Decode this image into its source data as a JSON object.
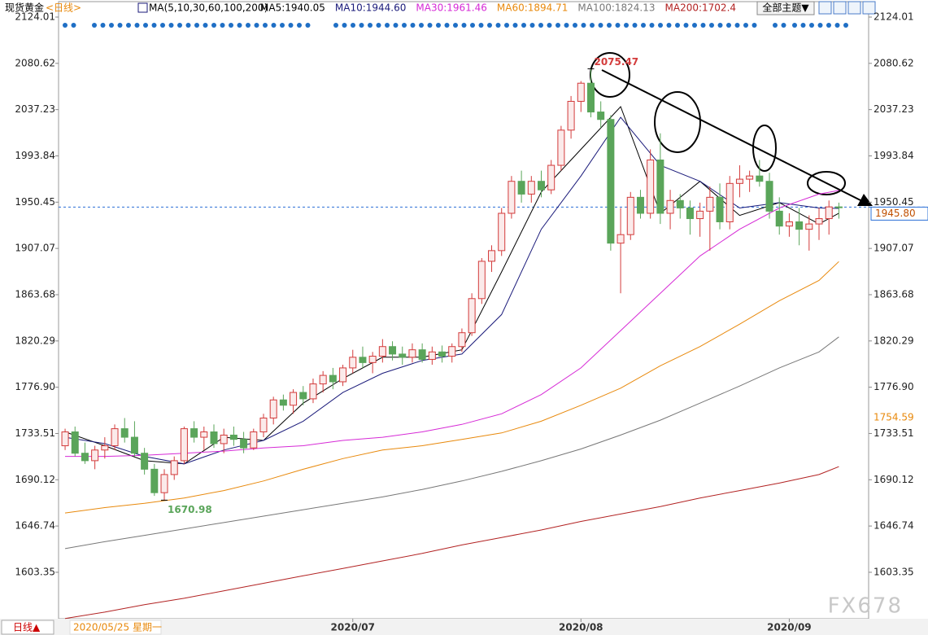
{
  "header": {
    "instrument": "现货黄金",
    "period": "<日线>",
    "ma_params": "MA(5,10,30,60,100,200)",
    "theme_button": "全部主题▼"
  },
  "chart_data": {
    "type": "candlestick",
    "colors": {
      "up": "#d33b3b",
      "up_fill": "#fbeaea",
      "down": "#5aa55a"
    },
    "xlim": [
      -0.66,
      81
    ],
    "xticks": [
      {
        "value": 29,
        "label": "2020/07"
      },
      {
        "value": 52,
        "label": "2020/08"
      },
      {
        "value": 73,
        "label": "2020/09"
      }
    ],
    "ylim": [
      1559.8,
      2138.5
    ],
    "yticks": [
      2124.01,
      2080.62,
      2037.23,
      1993.84,
      1950.45,
      1907.07,
      1863.68,
      1820.29,
      1776.9,
      1733.51,
      1690.12,
      1646.74,
      1603.35
    ],
    "ytick_labels": [
      "2124.01",
      "2080.62",
      "2037.23",
      "1993.84",
      "1950.45",
      "1907.07",
      "1863.68",
      "1820.29",
      "1776.90",
      "1733.51",
      "1690.12",
      "1646.74",
      "1603.35"
    ],
    "candles": [
      [
        1722,
        1738,
        1718,
        1735
      ],
      [
        1735,
        1740,
        1712,
        1715
      ],
      [
        1715,
        1725,
        1705,
        1708
      ],
      [
        1708,
        1722,
        1700,
        1718
      ],
      [
        1718,
        1730,
        1710,
        1722
      ],
      [
        1722,
        1742,
        1718,
        1738
      ],
      [
        1738,
        1748,
        1725,
        1730
      ],
      [
        1730,
        1745,
        1712,
        1715
      ],
      [
        1715,
        1720,
        1695,
        1700
      ],
      [
        1700,
        1705,
        1675,
        1678
      ],
      [
        1678,
        1700,
        1670.98,
        1695
      ],
      [
        1695,
        1712,
        1690,
        1708
      ],
      [
        1708,
        1740,
        1705,
        1738
      ],
      [
        1738,
        1745,
        1725,
        1730
      ],
      [
        1730,
        1740,
        1718,
        1735
      ],
      [
        1735,
        1742,
        1720,
        1724
      ],
      [
        1724,
        1738,
        1715,
        1732
      ],
      [
        1732,
        1740,
        1722,
        1728
      ],
      [
        1728,
        1735,
        1715,
        1720
      ],
      [
        1720,
        1738,
        1718,
        1735
      ],
      [
        1735,
        1752,
        1730,
        1748
      ],
      [
        1748,
        1768,
        1742,
        1765
      ],
      [
        1765,
        1770,
        1755,
        1760
      ],
      [
        1760,
        1775,
        1752,
        1772
      ],
      [
        1772,
        1778,
        1760,
        1766
      ],
      [
        1766,
        1785,
        1762,
        1780
      ],
      [
        1780,
        1792,
        1772,
        1788
      ],
      [
        1788,
        1795,
        1775,
        1782
      ],
      [
        1782,
        1798,
        1778,
        1795
      ],
      [
        1795,
        1812,
        1790,
        1805
      ],
      [
        1805,
        1815,
        1795,
        1800
      ],
      [
        1800,
        1810,
        1790,
        1806
      ],
      [
        1806,
        1822,
        1800,
        1815
      ],
      [
        1815,
        1820,
        1802,
        1808
      ],
      [
        1808,
        1815,
        1798,
        1805
      ],
      [
        1805,
        1818,
        1800,
        1812
      ],
      [
        1812,
        1818,
        1800,
        1803
      ],
      [
        1803,
        1815,
        1798,
        1810
      ],
      [
        1810,
        1816,
        1800,
        1806
      ],
      [
        1806,
        1818,
        1800,
        1815
      ],
      [
        1815,
        1832,
        1810,
        1828
      ],
      [
        1828,
        1865,
        1825,
        1860
      ],
      [
        1860,
        1898,
        1855,
        1895
      ],
      [
        1895,
        1910,
        1885,
        1905
      ],
      [
        1905,
        1945,
        1900,
        1940
      ],
      [
        1940,
        1975,
        1935,
        1970
      ],
      [
        1970,
        1980,
        1950,
        1958
      ],
      [
        1958,
        1975,
        1950,
        1970
      ],
      [
        1970,
        1980,
        1955,
        1962
      ],
      [
        1962,
        1990,
        1958,
        1985
      ],
      [
        1985,
        2022,
        1980,
        2018
      ],
      [
        2018,
        2050,
        2010,
        2045
      ],
      [
        2045,
        2064,
        2035,
        2062
      ],
      [
        2062,
        2075.47,
        2030,
        2035
      ],
      [
        2035,
        2045,
        2020,
        2028
      ],
      [
        2028,
        2032,
        1905,
        1912
      ],
      [
        1912,
        1945,
        1865,
        1920
      ],
      [
        1920,
        1960,
        1915,
        1955
      ],
      [
        1955,
        1962,
        1935,
        1940
      ],
      [
        1940,
        2000,
        1935,
        1990
      ],
      [
        1990,
        2015,
        1930,
        1940
      ],
      [
        1940,
        1962,
        1925,
        1952
      ],
      [
        1952,
        1958,
        1935,
        1945
      ],
      [
        1945,
        1952,
        1920,
        1935
      ],
      [
        1935,
        1950,
        1918,
        1942
      ],
      [
        1942,
        1965,
        1905,
        1955
      ],
      [
        1955,
        1968,
        1925,
        1932
      ],
      [
        1932,
        1975,
        1925,
        1968
      ],
      [
        1968,
        1985,
        1955,
        1972
      ],
      [
        1972,
        1980,
        1960,
        1975
      ],
      [
        1975,
        1990,
        1965,
        1970
      ],
      [
        1970,
        1978,
        1935,
        1942
      ],
      [
        1942,
        1955,
        1920,
        1928
      ],
      [
        1928,
        1940,
        1918,
        1932
      ],
      [
        1932,
        1945,
        1910,
        1925
      ],
      [
        1925,
        1938,
        1905,
        1930
      ],
      [
        1930,
        1945,
        1915,
        1935
      ],
      [
        1935,
        1952,
        1920,
        1946
      ],
      [
        1946,
        1950,
        1935,
        1945.8
      ]
    ],
    "series": [
      {
        "name": "MA5:1940.05",
        "color": "#000000",
        "x": [
          0,
          4,
          8,
          12,
          16,
          20,
          24,
          28,
          32,
          36,
          40,
          44,
          48,
          52,
          56,
          60,
          64,
          68,
          72,
          76,
          78
        ],
        "values": [
          1735,
          1722,
          1708,
          1705,
          1730,
          1727,
          1762,
          1785,
          1805,
          1805,
          1812,
          1885,
          1960,
          2000,
          2040,
          1940,
          1970,
          1938,
          1950,
          1930,
          1940.05
        ]
      },
      {
        "name": "MA10:1944.60",
        "color": "#1a1a7a",
        "x": [
          0,
          4,
          8,
          12,
          16,
          20,
          24,
          28,
          32,
          36,
          40,
          44,
          48,
          52,
          56,
          60,
          64,
          68,
          72,
          76,
          78
        ],
        "values": [
          1730,
          1724,
          1712,
          1705,
          1718,
          1727,
          1745,
          1772,
          1790,
          1802,
          1808,
          1845,
          1925,
          1975,
          2030,
          1985,
          1970,
          1945,
          1950,
          1945,
          1944.6
        ]
      },
      {
        "name": "MA30:1961.46",
        "color": "#d62ad6",
        "x": [
          0,
          4,
          8,
          12,
          16,
          20,
          24,
          28,
          32,
          36,
          40,
          44,
          48,
          52,
          56,
          60,
          64,
          68,
          72,
          76,
          78
        ],
        "values": [
          1712,
          1712,
          1713,
          1715,
          1717,
          1720,
          1722,
          1727,
          1730,
          1735,
          1742,
          1752,
          1770,
          1795,
          1830,
          1865,
          1900,
          1925,
          1945,
          1958,
          1961.46
        ]
      },
      {
        "name": "MA60:1894.71",
        "color": "#e8890c",
        "x": [
          0,
          4,
          8,
          12,
          16,
          20,
          24,
          28,
          32,
          36,
          40,
          44,
          48,
          52,
          56,
          60,
          64,
          68,
          72,
          76,
          78
        ],
        "values": [
          1659,
          1664,
          1668,
          1673,
          1680,
          1689,
          1700,
          1710,
          1718,
          1722,
          1728,
          1734,
          1745,
          1760,
          1776,
          1797,
          1815,
          1836,
          1858,
          1877,
          1894.71
        ]
      },
      {
        "name": "MA100:1824.13",
        "color": "#777777",
        "x": [
          0,
          4,
          8,
          12,
          16,
          20,
          24,
          28,
          32,
          36,
          40,
          44,
          48,
          52,
          56,
          60,
          64,
          68,
          72,
          76,
          78
        ],
        "values": [
          1625.5,
          1632,
          1638,
          1644,
          1650,
          1656,
          1662,
          1668,
          1674,
          1681,
          1689,
          1698,
          1708,
          1719,
          1732,
          1746,
          1762,
          1778,
          1795,
          1810,
          1824.13
        ]
      },
      {
        "name": "MA200:1702.4",
        "color": "#b22222",
        "x": [
          0,
          4,
          8,
          12,
          16,
          20,
          24,
          28,
          32,
          36,
          40,
          44,
          48,
          52,
          56,
          60,
          64,
          68,
          72,
          76,
          78
        ],
        "values": [
          1560,
          1566,
          1573,
          1579,
          1586,
          1593,
          1600,
          1607,
          1614,
          1621,
          1629,
          1636,
          1643,
          1651,
          1658,
          1665,
          1673,
          1680,
          1687,
          1695,
          1702.4
        ]
      }
    ],
    "annotations": [
      {
        "x": 10,
        "value": 1670.98,
        "label": "1670.98",
        "color": "#5aa55a"
      },
      {
        "x": 53,
        "value": 2075.47,
        "label": "2075.47",
        "color": "#d33b3b"
      }
    ],
    "last_price": {
      "value": 1945.8,
      "label": "1945.80",
      "color": "#2a6fd6"
    },
    "ma60_marker": {
      "value": 1754.59,
      "label": "1754.59",
      "color": "#e8890c"
    },
    "period_tab": "日线▲",
    "start_date": "2020/05/25 星期一"
  },
  "watermark": "FX678"
}
